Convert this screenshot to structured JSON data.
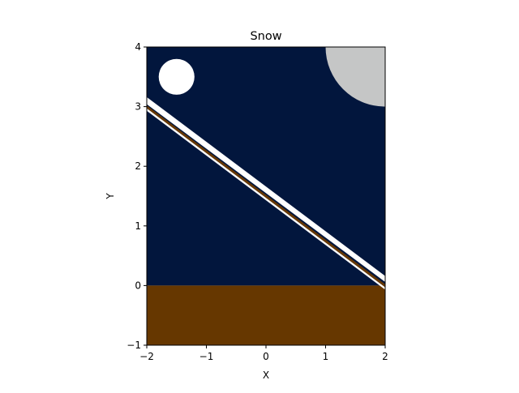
{
  "chart_data": {
    "type": "area",
    "title": "Snow",
    "xlabel": "X",
    "ylabel": "Y",
    "xlim": [
      -2,
      2
    ],
    "ylim": [
      -1,
      4
    ],
    "xticks": [
      "−2",
      "−1",
      "0",
      "1",
      "2"
    ],
    "yticks": [
      "−1",
      "0",
      "1",
      "2",
      "3",
      "4"
    ],
    "xtick_values": [
      -2,
      -1,
      0,
      1,
      2
    ],
    "ytick_values": [
      -1,
      0,
      1,
      2,
      3,
      4
    ],
    "grid": false,
    "colors": {
      "sky": "#02163d",
      "ground": "#663700",
      "snow": "#ffffff",
      "moon": "#c5c6c6",
      "branch": "#663700"
    },
    "shapes": [
      {
        "name": "sky",
        "kind": "rect",
        "x0": -2,
        "x1": 2,
        "y0": 0,
        "y1": 4
      },
      {
        "name": "ground",
        "kind": "rect",
        "x0": -2,
        "x1": 2,
        "y0": -1,
        "y1": 0
      },
      {
        "name": "moon",
        "kind": "circle",
        "cx": 2,
        "cy": 4,
        "r": 1
      },
      {
        "name": "snowflake",
        "kind": "circle",
        "cx": -1.5,
        "cy": 3.5,
        "r": 0.3
      },
      {
        "name": "snow-band-upper",
        "kind": "polygon",
        "points": [
          [
            -2,
            3.16
          ],
          [
            2,
            0.16
          ],
          [
            2,
            0.06
          ],
          [
            -2,
            3.04
          ]
        ]
      },
      {
        "name": "branch-line",
        "kind": "polygon",
        "points": [
          [
            -2,
            3.02
          ],
          [
            2,
            0.02
          ],
          [
            2,
            -0.03
          ],
          [
            -2,
            2.97
          ]
        ]
      },
      {
        "name": "snow-band-lower",
        "kind": "polygon",
        "points": [
          [
            -2,
            2.97
          ],
          [
            2,
            -0.03
          ],
          [
            2,
            -0.07
          ],
          [
            -2,
            2.93
          ]
        ]
      }
    ]
  }
}
